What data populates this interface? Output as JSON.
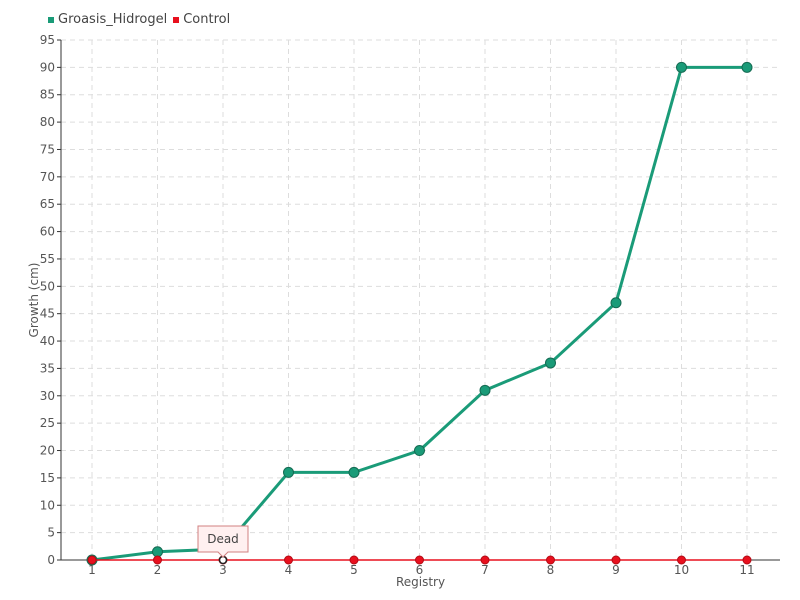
{
  "chart_data": {
    "type": "line",
    "x": [
      1,
      2,
      3,
      4,
      5,
      6,
      7,
      8,
      9,
      10,
      11
    ],
    "series": [
      {
        "name": "Groasis_Hidrogel",
        "color": "#1a9b78",
        "values": [
          0,
          1.5,
          2,
          16,
          16,
          20,
          31,
          36,
          47,
          90,
          90
        ]
      },
      {
        "name": "Control",
        "color": "#e8101e",
        "values": [
          0,
          0,
          0,
          0,
          0,
          0,
          0,
          0,
          0,
          0,
          0
        ]
      }
    ],
    "xlabel": "Registry",
    "ylabel": "Growth (cm)",
    "ylim": [
      0,
      95
    ],
    "yticks": [
      0,
      5,
      10,
      15,
      20,
      25,
      30,
      35,
      40,
      45,
      50,
      55,
      60,
      65,
      70,
      75,
      80,
      85,
      90,
      95
    ],
    "grid": true,
    "legend": "top-left",
    "annotation": {
      "text": "Dead",
      "x": 3,
      "y": 0
    }
  }
}
